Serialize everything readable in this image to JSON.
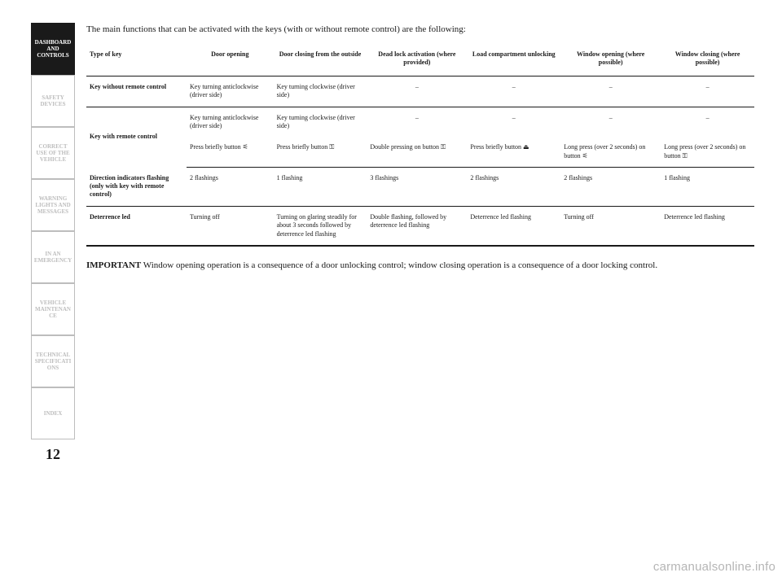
{
  "page_number": "12",
  "sidebar": {
    "tabs": [
      {
        "label": "DASHBOARD AND CONTROLS",
        "active": true
      },
      {
        "label": "SAFETY DEVICES",
        "active": false
      },
      {
        "label": "CORRECT USE OF THE VEHICLE",
        "active": false
      },
      {
        "label": "WARNING LIGHTS AND MESSAGES",
        "active": false
      },
      {
        "label": "IN AN EMERGENCY",
        "active": false
      },
      {
        "label": "VEHICLE MAINTENANCE",
        "active": false
      },
      {
        "label": "TECHNICAL SPECIFICATIONS",
        "active": false
      },
      {
        "label": "INDEX",
        "active": false
      }
    ]
  },
  "intro": "The main functions that can be activated with the keys (with or without remote control) are the following:",
  "table": {
    "headers": [
      "Type of key",
      "Door opening",
      "Door closing from the outside",
      "Dead lock activation (where provided)",
      "Load compartment unlocking",
      "Window opening (where possible)",
      "Window closing (where possible)"
    ],
    "rows": [
      {
        "label": "Key without remote control",
        "cells": [
          "Key turning anticlockwise (driver side)",
          "Key turning clockwise (driver side)",
          "–",
          "–",
          "–",
          "–"
        ],
        "sep": true
      },
      {
        "label_rowspan": "Key with remote control",
        "cells": [
          "Key turning anticlockwise (driver side)",
          "Key turning clockwise (driver side)",
          "–",
          "–",
          "–",
          "–"
        ],
        "sep": false
      },
      {
        "label": "",
        "cells": [
          "Press briefly button ⚟",
          "Press briefly button ⚿",
          "Double pressing on button ⚿",
          "Press briefly button ⏏",
          "Long press (over 2 seconds) on button ⚟",
          "Long press (over 2 seconds) on button ⚿"
        ],
        "sep": true
      },
      {
        "label": "Direction indicators flashing (only with key with remote control)",
        "cells": [
          "2 flashings",
          "1 flashing",
          "3 flashings",
          "2 flashings",
          "2 flashings",
          "1 flashing"
        ],
        "sep": true
      },
      {
        "label": "Deterrence led",
        "cells": [
          "Turning off",
          "Turning on glaring steadily for about 3 seconds followed by deterrence led flashing",
          "Double flashing, followed by deterrence led flashing",
          "Deterrence led flashing",
          "Turning off",
          "Deterrence led flashing"
        ],
        "thick": true
      }
    ]
  },
  "footnote_bold": "IMPORTANT",
  "footnote_text": " Window opening operation is a consequence of a door unlocking control; window closing operation is a consequence of a door locking control.",
  "watermark": "carmanualsonline.info"
}
